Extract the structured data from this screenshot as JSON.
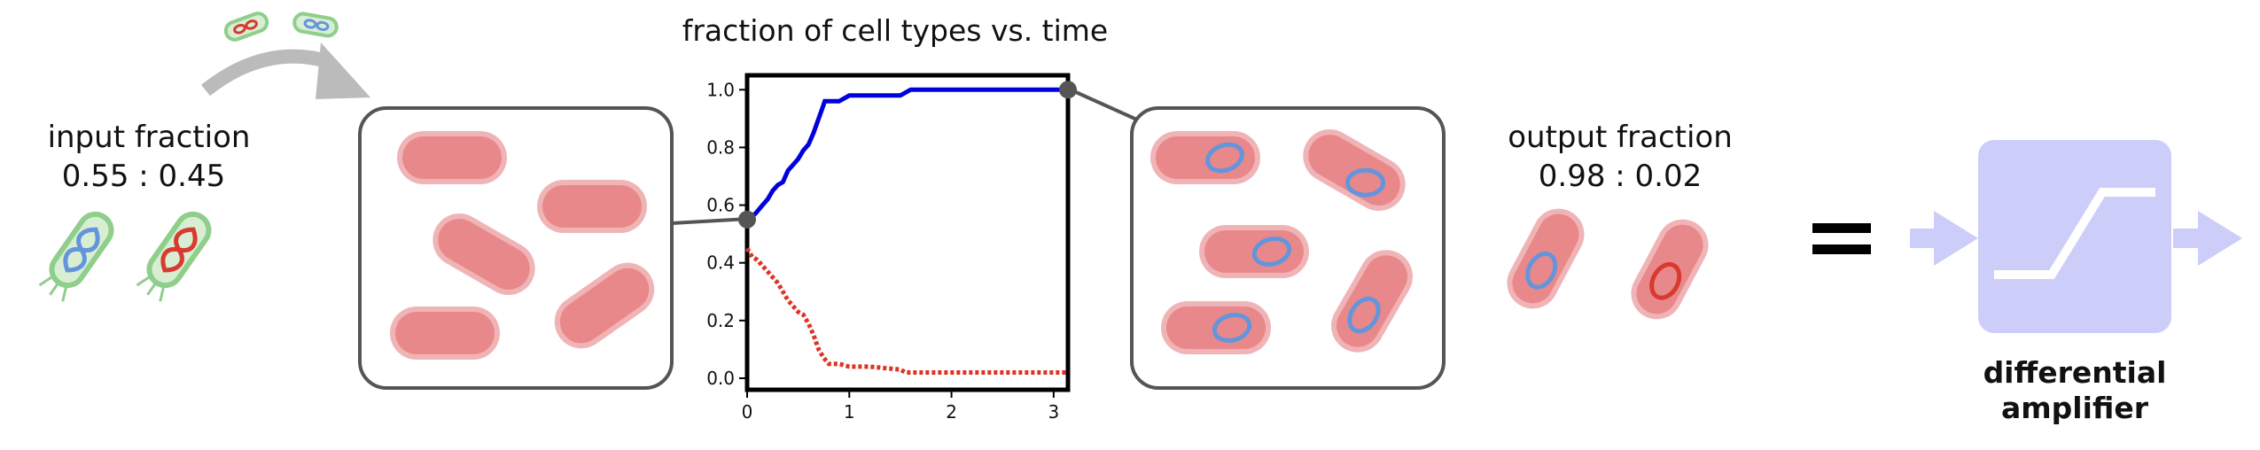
{
  "input": {
    "title": "input fraction",
    "ratio": "0.55 : 0.45"
  },
  "output": {
    "title": "output fraction",
    "ratio": "0.98 : 0.02"
  },
  "equals_sign": "=",
  "amplifier": {
    "label_line1": "differential",
    "label_line2": "amplifier",
    "color": "#cdcdf9"
  },
  "colors": {
    "cell_fill": "#e8888a",
    "cell_halo": "#f0b4b6",
    "plasmid_blue": "#6495dc",
    "plasmid_red": "#d83a30",
    "bacterium_membrane": "#8fce8b",
    "box_stroke": "#555555",
    "arrow_gray": "#bbbbbb",
    "series_blue": "#0000dd",
    "series_red": "#dd3322"
  },
  "chart_data": {
    "type": "line",
    "title": "fraction of cell types vs. time",
    "xlabel": "",
    "ylabel": "",
    "xlim": [
      0,
      3.14
    ],
    "ylim": [
      -0.04,
      1.05
    ],
    "xticks": [
      0,
      1,
      2,
      3
    ],
    "yticks": [
      0.0,
      0.2,
      0.4,
      0.6,
      0.8,
      1.0
    ],
    "grid": false,
    "legend": "none",
    "series": [
      {
        "style": "solid",
        "color": "#0000dd",
        "x": [
          0,
          0.08,
          0.15,
          0.2,
          0.25,
          0.3,
          0.35,
          0.4,
          0.45,
          0.5,
          0.55,
          0.6,
          0.65,
          0.7,
          0.73,
          0.76,
          0.8,
          0.85,
          0.9,
          0.95,
          1.0,
          1.1,
          1.3,
          1.5,
          1.55,
          1.6,
          1.8,
          2.0,
          2.5,
          3.14
        ],
        "y": [
          0.55,
          0.57,
          0.6,
          0.62,
          0.65,
          0.67,
          0.68,
          0.72,
          0.74,
          0.76,
          0.79,
          0.81,
          0.85,
          0.9,
          0.93,
          0.96,
          0.96,
          0.96,
          0.96,
          0.97,
          0.98,
          0.98,
          0.98,
          0.98,
          0.99,
          1.0,
          1.0,
          1.0,
          1.0,
          1.0
        ]
      },
      {
        "style": "dotted",
        "color": "#dd3322",
        "x": [
          0,
          0.05,
          0.1,
          0.15,
          0.2,
          0.3,
          0.35,
          0.4,
          0.45,
          0.5,
          0.55,
          0.6,
          0.65,
          0.7,
          0.75,
          0.8,
          0.85,
          0.9,
          1.0,
          1.2,
          1.5,
          1.55,
          1.6,
          2.0,
          2.5,
          3.14
        ],
        "y": [
          0.45,
          0.42,
          0.41,
          0.39,
          0.37,
          0.33,
          0.3,
          0.27,
          0.25,
          0.23,
          0.22,
          0.19,
          0.15,
          0.1,
          0.07,
          0.05,
          0.05,
          0.05,
          0.04,
          0.04,
          0.03,
          0.02,
          0.02,
          0.02,
          0.02,
          0.02
        ]
      }
    ]
  }
}
